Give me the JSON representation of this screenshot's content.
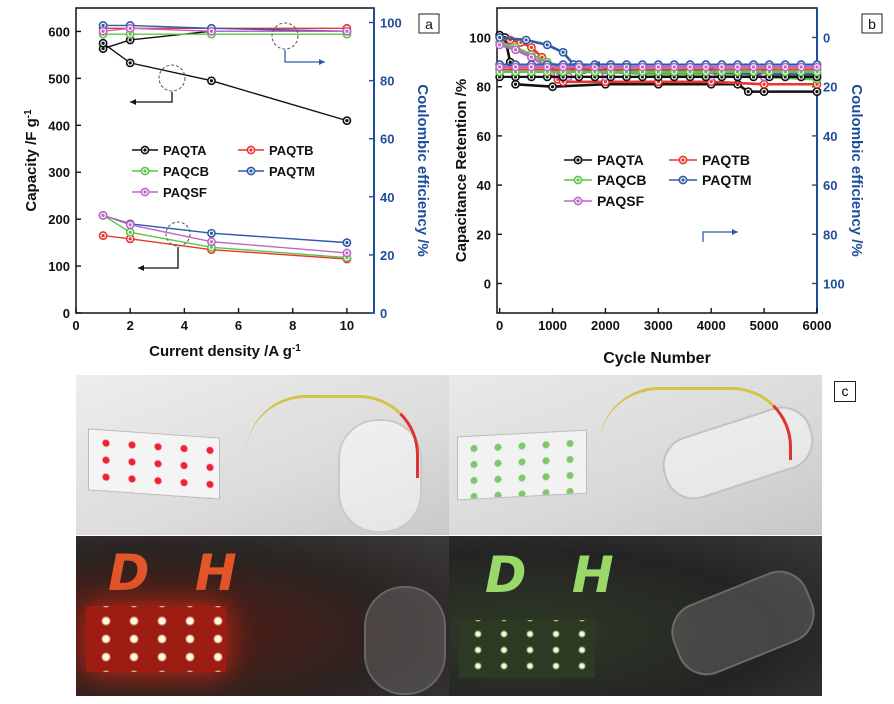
{
  "panel_labels": {
    "a": "a",
    "b": "b",
    "c": "c"
  },
  "photo_text": {
    "red": "D H",
    "green": "D H"
  },
  "chart_data": [
    {
      "type": "line",
      "xlabel": "Current density /A g",
      "xlabel_sup": "-1",
      "ylabel": "Capacity /F g",
      "ylabel_sup": "-1",
      "y2label": "Coulombic efficiency /%",
      "xlim": [
        0,
        11
      ],
      "xticks": [
        0,
        2,
        4,
        6,
        8,
        10
      ],
      "ylim": [
        0,
        650
      ],
      "yticks": [
        0,
        100,
        200,
        300,
        400,
        500,
        600
      ],
      "y2lim": [
        0,
        105
      ],
      "y2ticks": [
        0,
        20,
        40,
        60,
        80,
        100
      ],
      "legend_position": "center",
      "capacity_series": [
        {
          "name": "PAQTA",
          "color": "#111111",
          "x": [
            1,
            2,
            5,
            10
          ],
          "y": [
            575,
            533,
            495,
            410
          ]
        },
        {
          "name": "PAQTB",
          "color": "#e8362c",
          "x": [
            1,
            2,
            5,
            10
          ],
          "y": [
            165,
            158,
            135,
            115
          ]
        },
        {
          "name": "PAQCB",
          "color": "#5fc44a",
          "x": [
            1,
            2,
            5,
            10
          ],
          "y": [
            208,
            172,
            140,
            118
          ]
        },
        {
          "name": "PAQTM",
          "color": "#2f5aa8",
          "x": [
            1,
            2,
            5,
            10
          ],
          "y": [
            208,
            190,
            170,
            150
          ]
        },
        {
          "name": "PAQSF",
          "color": "#c065c8",
          "x": [
            1,
            2,
            5,
            10
          ],
          "y": [
            208,
            188,
            152,
            128
          ]
        }
      ],
      "efficiency_series": [
        {
          "name": "PAQTA",
          "color": "#111111",
          "x": [
            1,
            2,
            5,
            10
          ],
          "y": [
            91,
            94,
            97,
            97
          ]
        },
        {
          "name": "PAQTB",
          "color": "#e8362c",
          "x": [
            1,
            2,
            5,
            10
          ],
          "y": [
            98,
            98,
            98,
            98
          ]
        },
        {
          "name": "PAQCB",
          "color": "#5fc44a",
          "x": [
            1,
            2,
            5,
            10
          ],
          "y": [
            96,
            96,
            96,
            96
          ]
        },
        {
          "name": "PAQTM",
          "color": "#2f5aa8",
          "x": [
            1,
            2,
            5,
            10
          ],
          "y": [
            99,
            99,
            98,
            97
          ]
        },
        {
          "name": "PAQSF",
          "color": "#c065c8",
          "x": [
            1,
            2,
            5,
            10
          ],
          "y": [
            97,
            98,
            97,
            97
          ]
        }
      ]
    },
    {
      "type": "line",
      "xlabel": "Cycle Number",
      "ylabel": "Capacitance Retention /%",
      "y2label": "Coulombic efficiency /%",
      "xlim": [
        -50,
        6000
      ],
      "xticks": [
        0,
        1000,
        2000,
        3000,
        4000,
        5000,
        6000
      ],
      "ylim": [
        -12,
        112
      ],
      "yticks": [
        0,
        20,
        40,
        60,
        80,
        100
      ],
      "y2lim": [
        -12,
        112
      ],
      "y2ticks": [
        0,
        20,
        40,
        60,
        80,
        100
      ],
      "y2_reversed": true,
      "legend_position": "center",
      "retention_series": [
        {
          "name": "PAQTA",
          "color": "#111111",
          "x": [
            0,
            100,
            200,
            300,
            1000,
            2000,
            3000,
            4000,
            4500,
            4700,
            5000,
            6000
          ],
          "y": [
            101,
            100,
            90,
            81,
            80,
            81,
            81,
            81,
            81,
            78,
            78,
            78
          ]
        },
        {
          "name": "PAQTB",
          "color": "#e8362c",
          "x": [
            0,
            200,
            400,
            600,
            800,
            1000,
            1100,
            1200,
            2000,
            3000,
            4000,
            5000,
            6000
          ],
          "y": [
            100,
            99,
            98,
            96,
            92,
            86,
            83,
            82,
            82,
            82,
            82,
            81,
            81
          ]
        },
        {
          "name": "PAQCB",
          "color": "#5fc44a",
          "x": [
            0,
            300,
            600,
            900,
            1200,
            1500,
            2000,
            3000,
            4000,
            5000,
            6000
          ],
          "y": [
            98,
            96,
            93,
            90,
            88,
            86,
            86,
            85,
            85,
            84,
            83
          ]
        },
        {
          "name": "PAQTM",
          "color": "#2f5aa8",
          "x": [
            0,
            500,
            900,
            1200,
            1400,
            1600,
            2000,
            3000,
            4000,
            5000,
            6000
          ],
          "y": [
            100,
            99,
            97,
            94,
            89,
            87,
            86,
            86,
            86,
            85,
            85
          ]
        },
        {
          "name": "PAQSF",
          "color": "#c065c8",
          "x": [
            0,
            300,
            600,
            900,
            1100,
            1300,
            2000,
            3000,
            4000,
            5000,
            6000
          ],
          "y": [
            97,
            95,
            92,
            88,
            85,
            84,
            84,
            84,
            84,
            84,
            84
          ]
        }
      ],
      "efficiency_series": [
        {
          "name": "PAQTA",
          "color": "#111111",
          "value": 16
        },
        {
          "name": "PAQTB",
          "color": "#e8362c",
          "value": 13
        },
        {
          "name": "PAQCB",
          "color": "#5fc44a",
          "value": 14
        },
        {
          "name": "PAQTM",
          "color": "#2f5aa8",
          "value": 11
        },
        {
          "name": "PAQSF",
          "color": "#c065c8",
          "value": 12
        }
      ]
    }
  ]
}
